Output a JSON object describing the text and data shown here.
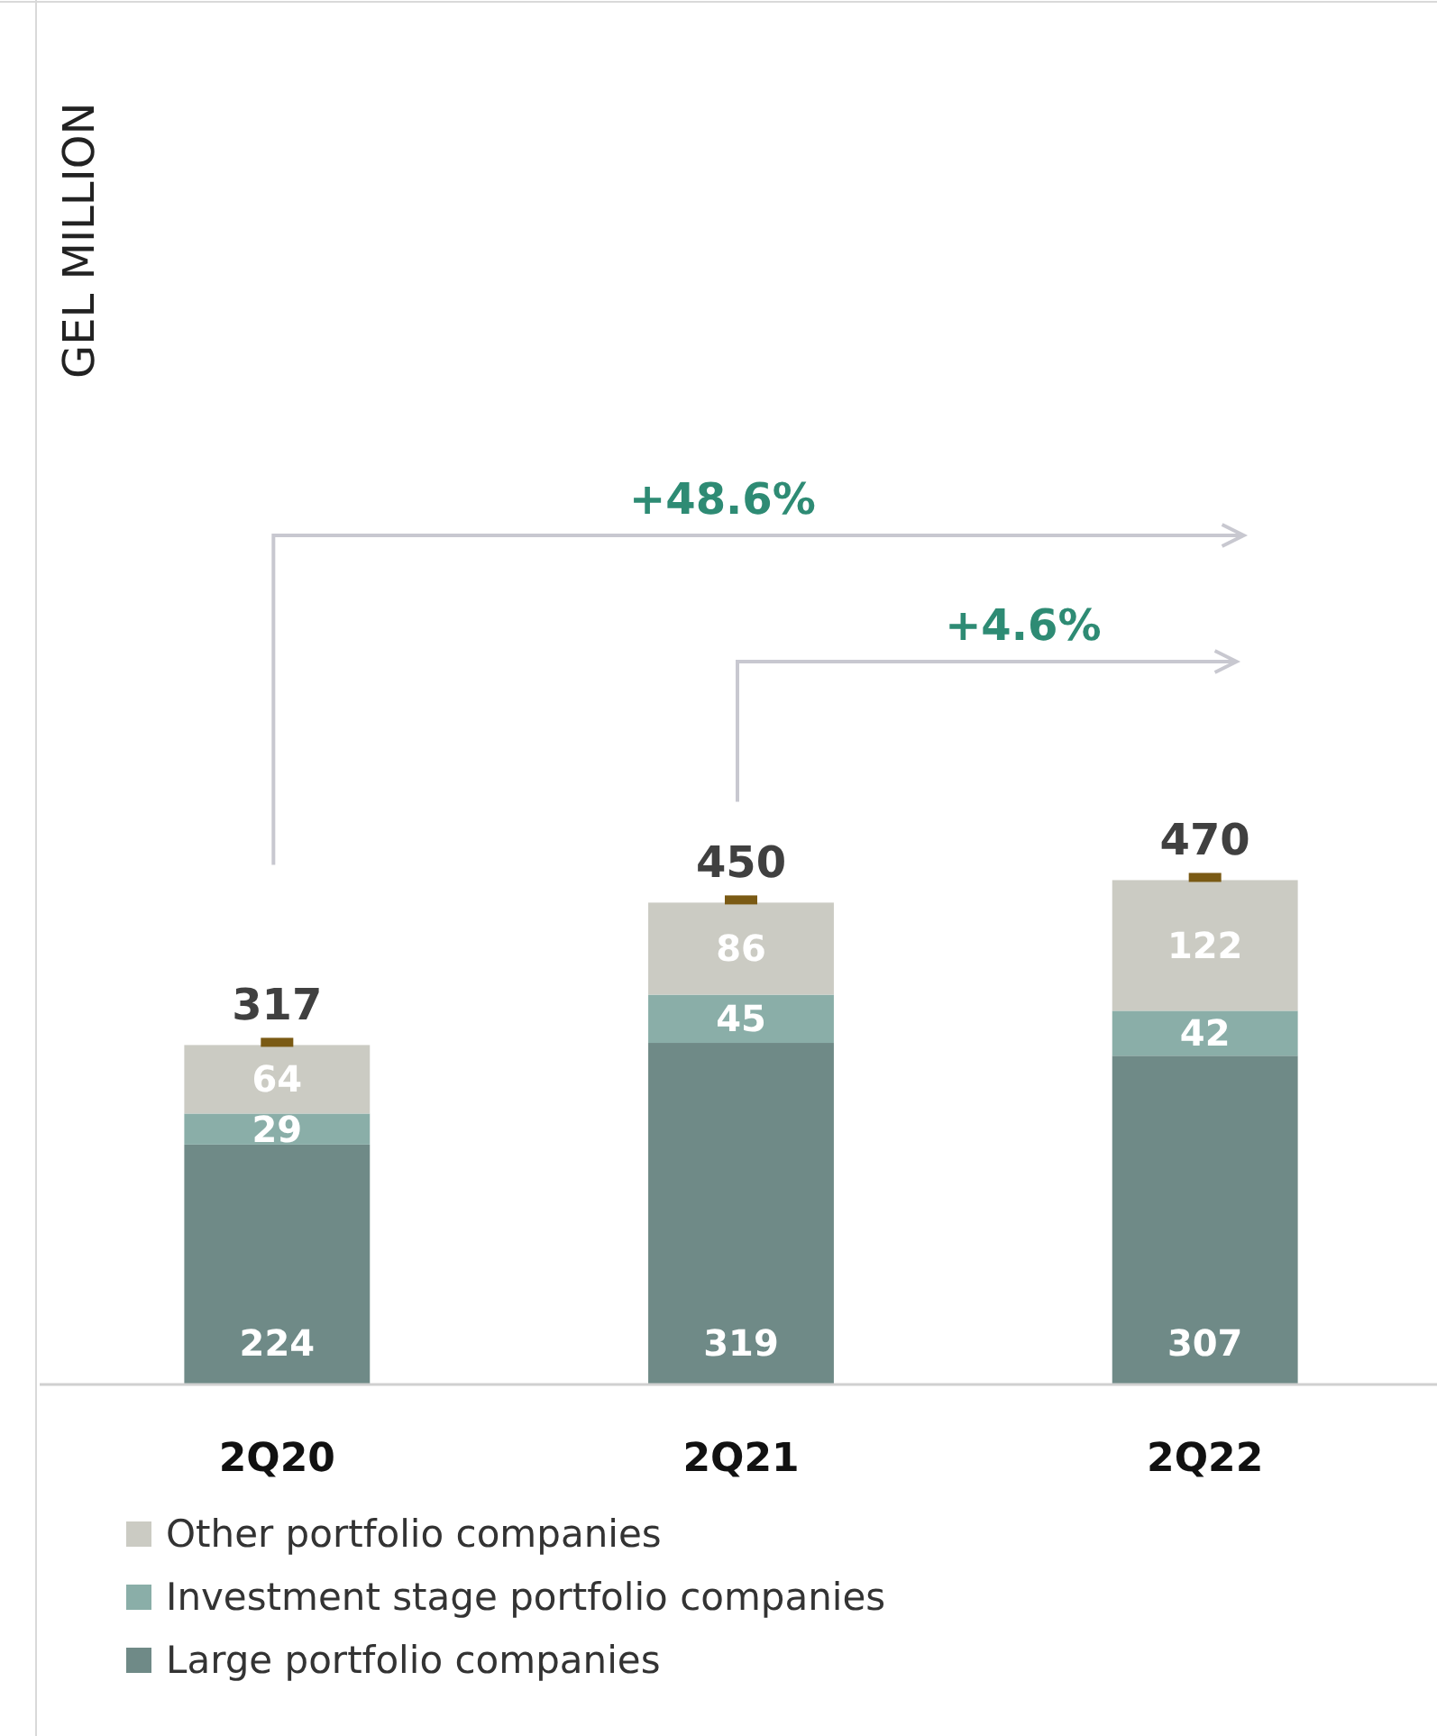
{
  "chart_data": {
    "type": "bar",
    "stacked": true,
    "categories": [
      "2Q20",
      "2Q21",
      "2Q22"
    ],
    "series": [
      {
        "name": "Large portfolio companies",
        "color": "#6f8a87",
        "values": [
          224,
          319,
          307
        ]
      },
      {
        "name": "Investment stage portfolio companies",
        "color": "#8aaea8",
        "values": [
          29,
          45,
          42
        ]
      },
      {
        "name": "Other portfolio companies",
        "color": "#cbcbc3",
        "values": [
          64,
          86,
          122
        ]
      }
    ],
    "data_labels": true,
    "totals": [
      "317",
      "450",
      "470"
    ],
    "legend": "bottom",
    "annotations": [
      "GEL MILLION",
      "+48.6%",
      "+4.6%"
    ]
  }
}
